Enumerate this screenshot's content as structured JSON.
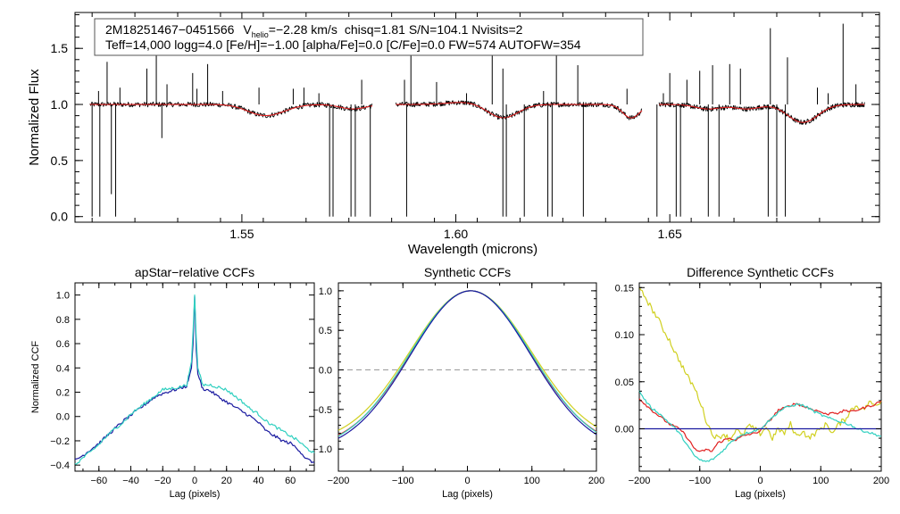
{
  "chart_data": [
    {
      "type": "line",
      "title": "",
      "xlabel": "Wavelength (microns)",
      "ylabel": "Normalized Flux",
      "xlim": [
        1.511,
        1.699
      ],
      "ylim": [
        -0.05,
        1.82
      ],
      "xticks": [
        1.55,
        1.6,
        1.65
      ],
      "xtick_labels": [
        "1.55",
        "1.60",
        "1.65"
      ],
      "yticks": [
        0.0,
        0.5,
        1.0,
        1.5
      ],
      "ytick_labels": [
        "0.0",
        "0.5",
        "1.0",
        "1.5"
      ],
      "info_box": {
        "object": "2M18251467−0451566",
        "v_prefix": "V",
        "v_sub": "helio",
        "v_value": "=−2.28 km/s",
        "stats": "chisq=1.81  S/N=104.1  Nvisits=2",
        "line2": "Teff=14,000 logg=4.0 [Fe/H]=−1.00 [alpha/Fe]=0.0 [C/Fe]=0.0 FW=574 AUTOFW=354"
      },
      "chips": [
        [
          1.5145,
          1.5805
        ],
        [
          1.586,
          1.6435
        ],
        [
          1.6475,
          1.6955
        ]
      ],
      "series": [
        {
          "name": "observed",
          "color": "#000000"
        },
        {
          "name": "model",
          "color": "#e02020"
        }
      ],
      "dips": [
        {
          "x": 1.5535,
          "depth": 0.04,
          "width": 0.0035
        },
        {
          "x": 1.557,
          "depth": 0.07,
          "width": 0.004
        },
        {
          "x": 1.576,
          "depth": 0.04,
          "width": 0.003
        },
        {
          "x": 1.602,
          "depth": -0.02,
          "width": 0.004
        },
        {
          "x": 1.611,
          "depth": 0.12,
          "width": 0.0035
        },
        {
          "x": 1.641,
          "depth": 0.07,
          "width": 0.002
        },
        {
          "x": 1.641,
          "depth": 0.05,
          "width": 0.002
        },
        {
          "x": 1.659,
          "depth": 0.04,
          "width": 0.003
        },
        {
          "x": 1.668,
          "depth": 0.04,
          "width": 0.003
        },
        {
          "x": 1.6811,
          "depth": 0.16,
          "width": 0.0035
        }
      ],
      "spikes_up": [
        [
          1.5165,
          1.12
        ],
        [
          1.5185,
          1.38
        ],
        [
          1.5215,
          1.15
        ],
        [
          1.5278,
          1.32
        ],
        [
          1.53,
          1.55
        ],
        [
          1.5325,
          1.18
        ],
        [
          1.5385,
          1.28
        ],
        [
          1.5395,
          1.14
        ],
        [
          1.542,
          1.36
        ],
        [
          1.5455,
          1.12
        ],
        [
          1.554,
          1.15
        ],
        [
          1.562,
          1.14
        ],
        [
          1.5645,
          1.15
        ],
        [
          1.568,
          1.1
        ],
        [
          1.578,
          1.22
        ],
        [
          1.588,
          1.22
        ],
        [
          1.5895,
          1.45
        ],
        [
          1.5955,
          1.2
        ],
        [
          1.6025,
          1.1
        ],
        [
          1.6085,
          1.5
        ],
        [
          1.611,
          1.32
        ],
        [
          1.6205,
          1.12
        ],
        [
          1.6235,
          1.57
        ],
        [
          1.6285,
          1.35
        ],
        [
          1.64,
          1.14
        ],
        [
          1.6485,
          1.1
        ],
        [
          1.65,
          1.28
        ],
        [
          1.654,
          1.22
        ],
        [
          1.657,
          1.3
        ],
        [
          1.66,
          1.35
        ],
        [
          1.664,
          1.36
        ],
        [
          1.6665,
          1.32
        ],
        [
          1.6735,
          1.68
        ],
        [
          1.6775,
          1.42
        ],
        [
          1.6845,
          1.15
        ],
        [
          1.687,
          1.1
        ],
        [
          1.6905,
          1.72
        ],
        [
          1.6935,
          1.18
        ]
      ],
      "spikes_down": [
        [
          1.515,
          0.0
        ],
        [
          1.5168,
          0.0
        ],
        [
          1.5195,
          0.2
        ],
        [
          1.5205,
          0.0
        ],
        [
          1.5313,
          0.7
        ],
        [
          1.5705,
          0.0
        ],
        [
          1.5713,
          0.0
        ],
        [
          1.5755,
          0.0
        ],
        [
          1.5765,
          0.0
        ],
        [
          1.58,
          0.0
        ],
        [
          1.5885,
          0.0
        ],
        [
          1.611,
          0.0
        ],
        [
          1.6118,
          0.0
        ],
        [
          1.616,
          0.0
        ],
        [
          1.6215,
          0.0
        ],
        [
          1.6225,
          0.0
        ],
        [
          1.6298,
          0.0
        ],
        [
          1.647,
          0.0
        ],
        [
          1.6515,
          0.0
        ],
        [
          1.6525,
          0.0
        ],
        [
          1.659,
          0.0
        ],
        [
          1.6615,
          0.0
        ],
        [
          1.673,
          0.0
        ],
        [
          1.675,
          0.0
        ],
        [
          1.677,
          0.0
        ]
      ]
    },
    {
      "type": "line",
      "title": "apStar−relative CCFs",
      "xlabel": "Lag (pixels)",
      "ylabel": "Normalized CCF",
      "xlim": [
        -75,
        75
      ],
      "ylim": [
        -0.45,
        1.1
      ],
      "xticks": [
        -60,
        -40,
        -20,
        0,
        20,
        40,
        60
      ],
      "xtick_labels": [
        "−60",
        "−40",
        "−20",
        "0",
        "20",
        "40",
        "60"
      ],
      "yticks": [
        -0.4,
        -0.2,
        0.0,
        0.2,
        0.4,
        0.6,
        0.8,
        1.0
      ],
      "ytick_labels": [
        "−0.4",
        "−0.2",
        "0.0",
        "0.2",
        "0.4",
        "0.6",
        "0.8",
        "1.0"
      ],
      "series": [
        {
          "name": "visit 1",
          "color": "#1a1aa0",
          "x": [
            -75,
            -70,
            -65,
            -60,
            -55,
            -50,
            -45,
            -40,
            -35,
            -30,
            -25,
            -20,
            -15,
            -10,
            -5,
            -2,
            -1,
            0,
            1,
            2,
            5,
            10,
            15,
            20,
            25,
            30,
            35,
            40,
            45,
            50,
            55,
            60,
            65,
            70,
            75
          ],
          "y": [
            -0.36,
            -0.32,
            -0.27,
            -0.22,
            -0.16,
            -0.1,
            -0.04,
            0.01,
            0.06,
            0.11,
            0.16,
            0.19,
            0.21,
            0.23,
            0.25,
            0.4,
            0.6,
            0.99,
            0.55,
            0.35,
            0.23,
            0.21,
            0.16,
            0.12,
            0.08,
            0.04,
            0.0,
            -0.05,
            -0.12,
            -0.16,
            -0.2,
            -0.22,
            -0.27,
            -0.35,
            -0.38
          ]
        },
        {
          "name": "visit 2",
          "color": "#30d0c0",
          "x": [
            -75,
            -70,
            -65,
            -60,
            -55,
            -50,
            -45,
            -40,
            -35,
            -30,
            -25,
            -20,
            -15,
            -10,
            -5,
            -2,
            -1,
            0,
            1,
            2,
            5,
            10,
            15,
            20,
            25,
            30,
            35,
            40,
            45,
            50,
            55,
            60,
            65,
            70,
            75
          ],
          "y": [
            -0.4,
            -0.34,
            -0.29,
            -0.23,
            -0.16,
            -0.1,
            -0.05,
            0.02,
            0.07,
            0.12,
            0.17,
            0.22,
            0.23,
            0.24,
            0.26,
            0.45,
            0.7,
            1.0,
            0.65,
            0.4,
            0.26,
            0.26,
            0.24,
            0.22,
            0.17,
            0.12,
            0.06,
            0.02,
            -0.04,
            -0.08,
            -0.12,
            -0.16,
            -0.2,
            -0.26,
            -0.3
          ]
        }
      ]
    },
    {
      "type": "line",
      "title": "Synthetic CCFs",
      "xlabel": "Lag (pixels)",
      "ylabel": "",
      "xlim": [
        -200,
        200
      ],
      "ylim": [
        -1.28,
        1.1
      ],
      "xticks": [
        -200,
        -100,
        0,
        100,
        200
      ],
      "xtick_labels": [
        "−200",
        "−100",
        "0",
        "100",
        "200"
      ],
      "yticks": [
        -1.0,
        -0.5,
        0.0,
        0.5,
        1.0
      ],
      "ytick_labels": [
        "−1.0",
        "−0.5",
        "0.0",
        "0.5",
        "1.0"
      ],
      "reference_line": 0.0,
      "series": [
        {
          "name": "synthetic 1",
          "color": "#d0d020",
          "center": 5,
          "sigma": 95,
          "offset": 0.04
        },
        {
          "name": "synthetic 2",
          "color": "#e02020",
          "center": 5,
          "sigma": 93,
          "offset": 0.0
        },
        {
          "name": "synthetic 3",
          "color": "#30d0c0",
          "center": 5,
          "sigma": 94,
          "offset": -0.02
        },
        {
          "name": "synthetic 4",
          "color": "#1a1aa0",
          "center": 5,
          "sigma": 92,
          "offset": -0.03
        }
      ]
    },
    {
      "type": "line",
      "title": "Difference Synthetic CCFs",
      "xlabel": "Lag (pixels)",
      "ylabel": "",
      "xlim": [
        -200,
        200
      ],
      "ylim": [
        -0.045,
        0.155
      ],
      "xticks": [
        -200,
        -100,
        0,
        100,
        200
      ],
      "xtick_labels": [
        "−200",
        "−100",
        "0",
        "100",
        "200"
      ],
      "yticks": [
        0.0,
        0.05,
        0.1,
        0.15
      ],
      "ytick_labels": [
        "0.00",
        "0.05",
        "0.10",
        "0.15"
      ],
      "series": [
        {
          "name": "difference 1",
          "color": "#d0d020",
          "x": [
            -200,
            -190,
            -180,
            -170,
            -160,
            -150,
            -140,
            -130,
            -120,
            -110,
            -100,
            -90,
            -80,
            -70,
            -60,
            -50,
            -40,
            -30,
            -20,
            -10,
            0,
            10,
            20,
            30,
            40,
            50,
            60,
            70,
            80,
            90,
            100,
            110,
            120,
            130,
            140,
            150,
            160,
            170,
            180,
            190,
            200
          ],
          "y": [
            0.148,
            0.14,
            0.128,
            0.118,
            0.105,
            0.094,
            0.08,
            0.068,
            0.055,
            0.045,
            0.03,
            0.01,
            -0.005,
            -0.01,
            -0.005,
            -0.012,
            0.0,
            -0.008,
            0.003,
            0.0,
            -0.005,
            0.002,
            -0.01,
            0.0,
            -0.005,
            0.005,
            -0.008,
            -0.002,
            -0.01,
            -0.005,
            0.0,
            0.005,
            -0.005,
            0.005,
            0.01,
            0.02,
            0.025,
            0.02,
            0.028,
            0.025,
            0.03
          ]
        },
        {
          "name": "difference 2",
          "color": "#e02020",
          "x": [
            -200,
            -190,
            -180,
            -170,
            -160,
            -150,
            -140,
            -130,
            -120,
            -110,
            -100,
            -90,
            -80,
            -70,
            -60,
            -50,
            -40,
            -30,
            -20,
            -10,
            0,
            10,
            20,
            30,
            40,
            50,
            60,
            70,
            80,
            90,
            100,
            110,
            120,
            130,
            140,
            150,
            160,
            170,
            180,
            190,
            200
          ],
          "y": [
            0.032,
            0.026,
            0.02,
            0.015,
            0.01,
            0.005,
            0.002,
            -0.002,
            -0.01,
            -0.02,
            -0.025,
            -0.022,
            -0.024,
            -0.015,
            -0.012,
            -0.01,
            -0.012,
            -0.008,
            -0.006,
            -0.005,
            -0.002,
            0.005,
            0.012,
            0.02,
            0.022,
            0.025,
            0.027,
            0.024,
            0.022,
            0.02,
            0.018,
            0.015,
            0.018,
            0.016,
            0.02,
            0.018,
            0.02,
            0.022,
            0.024,
            0.026,
            0.03
          ]
        },
        {
          "name": "difference 3",
          "color": "#30d0c0",
          "x": [
            -200,
            -190,
            -180,
            -170,
            -160,
            -150,
            -140,
            -130,
            -120,
            -110,
            -100,
            -90,
            -80,
            -70,
            -60,
            -50,
            -40,
            -30,
            -20,
            -10,
            0,
            10,
            20,
            30,
            40,
            50,
            60,
            70,
            80,
            90,
            100,
            110,
            120,
            130,
            140,
            150,
            160,
            170,
            180,
            190,
            200
          ],
          "y": [
            0.04,
            0.03,
            0.022,
            0.018,
            0.012,
            0.006,
            0.0,
            -0.008,
            -0.018,
            -0.028,
            -0.033,
            -0.035,
            -0.033,
            -0.028,
            -0.022,
            -0.015,
            -0.01,
            -0.006,
            -0.004,
            -0.002,
            0.0,
            0.006,
            0.012,
            0.018,
            0.022,
            0.024,
            0.026,
            0.025,
            0.022,
            0.018,
            0.015,
            0.012,
            0.01,
            0.008,
            0.006,
            0.004,
            0.0,
            -0.002,
            -0.004,
            -0.006,
            -0.008
          ]
        },
        {
          "name": "difference 4",
          "color": "#1a1aa0",
          "x": [
            -200,
            200
          ],
          "y": [
            0.0,
            0.0
          ]
        }
      ]
    }
  ]
}
